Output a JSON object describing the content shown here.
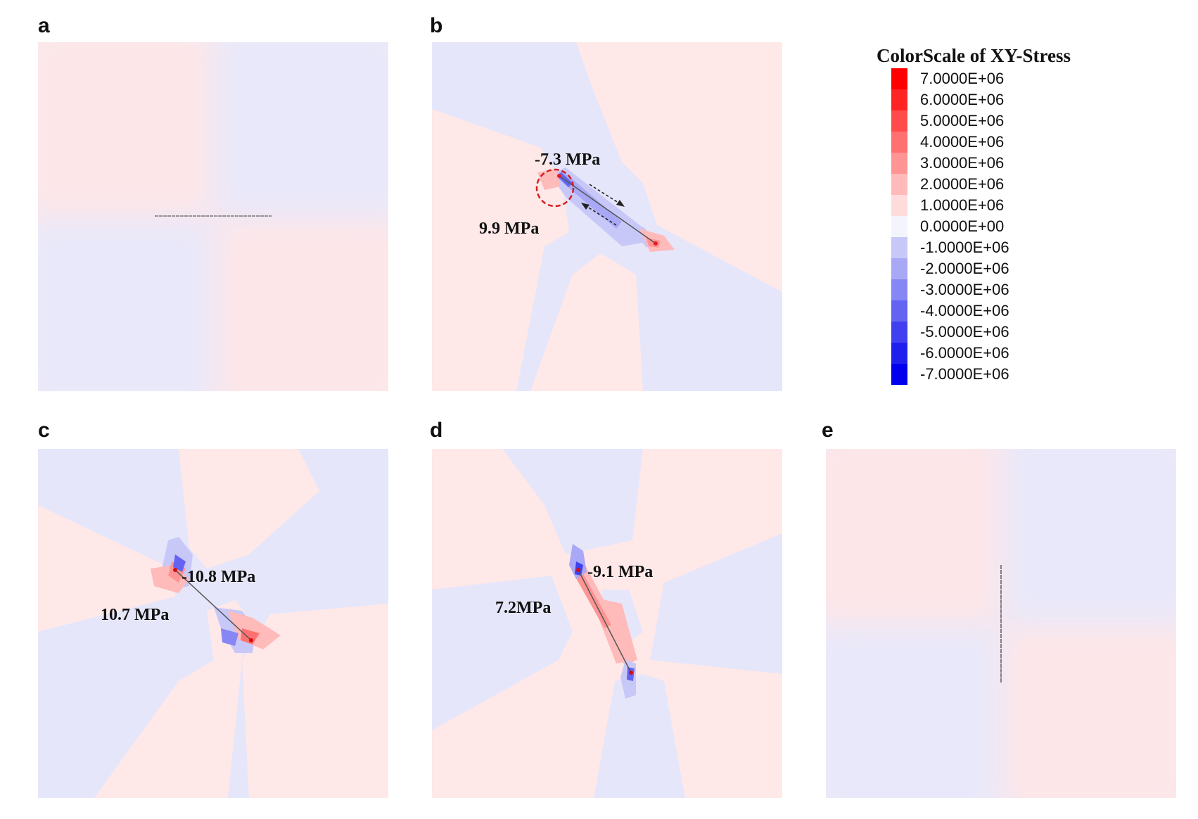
{
  "panels": [
    {
      "id": "a",
      "letter": "a"
    },
    {
      "id": "b",
      "letter": "b"
    },
    {
      "id": "c",
      "letter": "c"
    },
    {
      "id": "d",
      "letter": "d"
    },
    {
      "id": "e",
      "letter": "e"
    }
  ],
  "annotations": {
    "b_tip_top": "-7.3 MPa",
    "b_tip_bottom": "9.9 MPa",
    "c_tip_top": "-10.8 MPa",
    "c_tip_bottom": "10.7 MPa",
    "d_tip_top": "-9.1 MPa",
    "d_tip_bottom": "7.2MPa"
  },
  "legend": {
    "title": "ColorScale of XY-Stress",
    "entries": [
      {
        "label": "7.0000E+06",
        "color": "#ff0000"
      },
      {
        "label": "6.0000E+06",
        "color": "#ff2424"
      },
      {
        "label": "5.0000E+06",
        "color": "#ff4b4b"
      },
      {
        "label": "4.0000E+06",
        "color": "#ff7070"
      },
      {
        "label": "3.0000E+06",
        "color": "#ff9494"
      },
      {
        "label": "2.0000E+06",
        "color": "#ffbaba"
      },
      {
        "label": "1.0000E+06",
        "color": "#ffdcdc"
      },
      {
        "label": "0.0000E+00",
        "color": "#f4f4fc"
      },
      {
        "label": "-1.0000E+06",
        "color": "#c8c8f8"
      },
      {
        "label": "-2.0000E+06",
        "color": "#a8a8f6"
      },
      {
        "label": "-3.0000E+06",
        "color": "#8686f4"
      },
      {
        "label": "-4.0000E+06",
        "color": "#6464f2"
      },
      {
        "label": "-5.0000E+06",
        "color": "#4040f0"
      },
      {
        "label": "-6.0000E+06",
        "color": "#2020ee"
      },
      {
        "label": "-7.0000E+06",
        "color": "#0000ee"
      }
    ]
  },
  "colors": {
    "positive_background": "#ffe8e8",
    "negative_background": "#e6e6fa",
    "fracture_line": "#555555",
    "highlight_circle": "#d42020"
  }
}
